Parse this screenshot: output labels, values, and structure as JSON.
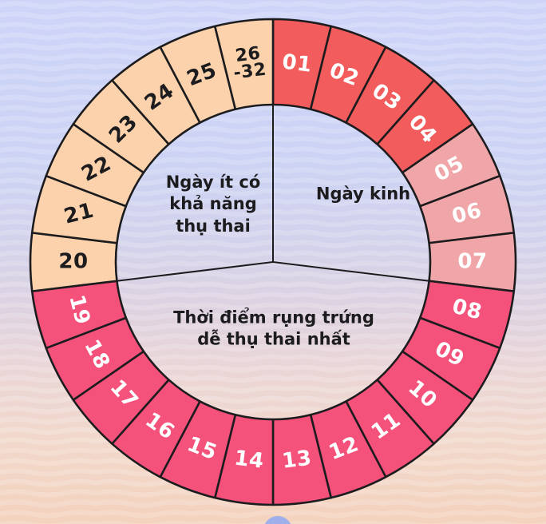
{
  "background": {
    "top_color": "#cdd4f8",
    "middle_color": "#ddd2e1",
    "bottom_color": "#f3d2bd",
    "wave_color": "#ffffff",
    "bottom_circle_color": "#9fafea"
  },
  "wheel": {
    "stroke_color": "#1c1c1e",
    "colors": {
      "menstruation_strong": "#f25c5c",
      "menstruation_light": "#f0a6a8",
      "ovulation": "#f4517b",
      "low_fertility": "#fbd2ab",
      "number_on_dark": "#ffffff",
      "number_on_light": "#1c1c1e"
    },
    "sections": [
      {
        "id": "menstruation",
        "label": "Ngày kinh"
      },
      {
        "id": "ovulation",
        "label": "Thời điểm rụng trứng\ndễ thụ thai nhất"
      },
      {
        "id": "low_fertility",
        "label": "Ngày ít có\nkhả năng\nthụ thai"
      }
    ],
    "segments": [
      {
        "label": "01",
        "group": "menstruation_strong"
      },
      {
        "label": "02",
        "group": "menstruation_strong"
      },
      {
        "label": "03",
        "group": "menstruation_strong"
      },
      {
        "label": "04",
        "group": "menstruation_strong"
      },
      {
        "label": "05",
        "group": "menstruation_light"
      },
      {
        "label": "06",
        "group": "menstruation_light"
      },
      {
        "label": "07",
        "group": "menstruation_light"
      },
      {
        "label": "08",
        "group": "ovulation"
      },
      {
        "label": "09",
        "group": "ovulation"
      },
      {
        "label": "10",
        "group": "ovulation"
      },
      {
        "label": "11",
        "group": "ovulation"
      },
      {
        "label": "12",
        "group": "ovulation"
      },
      {
        "label": "13",
        "group": "ovulation"
      },
      {
        "label": "14",
        "group": "ovulation"
      },
      {
        "label": "15",
        "group": "ovulation"
      },
      {
        "label": "16",
        "group": "ovulation"
      },
      {
        "label": "17",
        "group": "ovulation"
      },
      {
        "label": "18",
        "group": "ovulation"
      },
      {
        "label": "19",
        "group": "ovulation"
      },
      {
        "label": "20",
        "group": "low_fertility"
      },
      {
        "label": "21",
        "group": "low_fertility"
      },
      {
        "label": "22",
        "group": "low_fertility"
      },
      {
        "label": "23",
        "group": "low_fertility"
      },
      {
        "label": "24",
        "group": "low_fertility"
      },
      {
        "label": "25",
        "group": "low_fertility"
      },
      {
        "label": "26\n-32",
        "group": "low_fertility"
      }
    ]
  },
  "chart_data": {
    "type": "pie",
    "title": "",
    "description_labels": {
      "menstruation": "Ngày kinh",
      "ovulation": "Thời điểm rụng trứng dễ thụ thai nhất",
      "low_fertility": "Ngày ít có khả năng thụ thai"
    },
    "categories": [
      "01",
      "02",
      "03",
      "04",
      "05",
      "06",
      "07",
      "08",
      "09",
      "10",
      "11",
      "12",
      "13",
      "14",
      "15",
      "16",
      "17",
      "18",
      "19",
      "20",
      "21",
      "22",
      "23",
      "24",
      "25",
      "26-32"
    ],
    "values": [
      1,
      1,
      1,
      1,
      1,
      1,
      1,
      1,
      1,
      1,
      1,
      1,
      1,
      1,
      1,
      1,
      1,
      1,
      1,
      1,
      1,
      1,
      1,
      1,
      1,
      1
    ],
    "series_groups": [
      {
        "name": "Ngày kinh",
        "days": [
          "01",
          "02",
          "03",
          "04",
          "05",
          "06",
          "07"
        ]
      },
      {
        "name": "Thời điểm rụng trứng dễ thụ thai nhất",
        "days": [
          "08",
          "09",
          "10",
          "11",
          "12",
          "13",
          "14",
          "15",
          "16",
          "17",
          "18",
          "19"
        ]
      },
      {
        "name": "Ngày ít có khả năng thụ thai",
        "days": [
          "20",
          "21",
          "22",
          "23",
          "24",
          "25",
          "26-32"
        ]
      }
    ],
    "layout_hints": {
      "segments": 26,
      "start_angle_deg": 0,
      "direction": "clockwise",
      "ring": true
    }
  }
}
